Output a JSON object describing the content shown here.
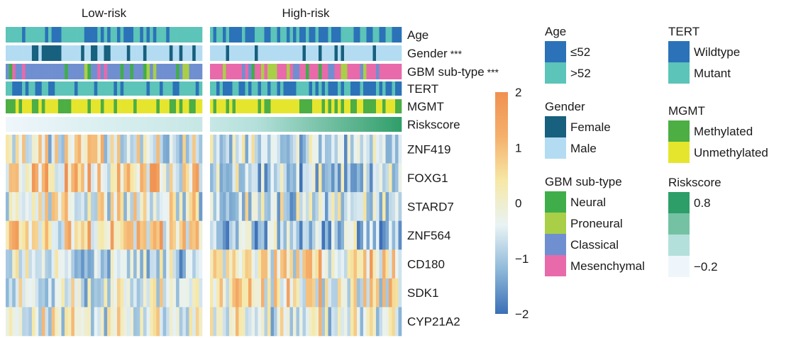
{
  "chart_data": {
    "type": "heatmap",
    "title": "",
    "groups": [
      "Low-risk",
      "High-risk"
    ],
    "n_samples_per_group": 60,
    "annotation_tracks": [
      {
        "label": "Age",
        "significance": ""
      },
      {
        "label": "Gender",
        "significance": "***"
      },
      {
        "label": "GBM sub-type",
        "significance": "***"
      },
      {
        "label": "TERT",
        "significance": ""
      },
      {
        "label": "MGMT",
        "significance": ""
      },
      {
        "label": "Riskscore",
        "significance": ""
      }
    ],
    "genes": [
      "ZNF419",
      "FOXG1",
      "STARD7",
      "ZNF564",
      "CD180",
      "SDK1",
      "CYP21A2"
    ],
    "color_scale": {
      "min": -2,
      "max": 2,
      "ticks": [
        2,
        1,
        0,
        -1,
        -2
      ],
      "tick_labels": [
        "2",
        "1",
        "0",
        "−1",
        "−2"
      ],
      "colors": [
        "#3b6fb6",
        "#8fb9d9",
        "#e9f3f5",
        "#f6e8a6",
        "#f5b06c",
        "#f09050"
      ]
    },
    "legends": [
      {
        "title": "Age",
        "items": [
          {
            "label": "≤52",
            "color": "#2b72b8"
          },
          {
            "label": ">52",
            "color": "#5cc4b8"
          }
        ]
      },
      {
        "title": "Gender",
        "items": [
          {
            "label": "Female",
            "color": "#17607e"
          },
          {
            "label": "Male",
            "color": "#b3dcf2"
          }
        ]
      },
      {
        "title": "GBM sub-type",
        "items": [
          {
            "label": "Neural",
            "color": "#3fae4a"
          },
          {
            "label": "Proneural",
            "color": "#a9cf48"
          },
          {
            "label": "Classical",
            "color": "#6f8fd0"
          },
          {
            "label": "Mesenchymal",
            "color": "#e86aab"
          }
        ]
      },
      {
        "title": "TERT",
        "items": [
          {
            "label": "Wildtype",
            "color": "#2b72b8"
          },
          {
            "label": "Mutant",
            "color": "#5cc4b8"
          }
        ]
      },
      {
        "title": "MGMT",
        "items": [
          {
            "label": "Methylated",
            "color": "#4cae43"
          },
          {
            "label": "Unmethylated",
            "color": "#e6e52d"
          }
        ]
      },
      {
        "title": "Riskscore",
        "items": [
          {
            "label": "0.8",
            "color": "#2e9e68"
          },
          {
            "label": "",
            "color": "#74c2a3"
          },
          {
            "label": "",
            "color": "#b4e0db"
          },
          {
            "label": "−0.2",
            "color": "#eef6fb"
          }
        ]
      }
    ],
    "riskscore_range": [
      -0.2,
      0.8
    ]
  }
}
